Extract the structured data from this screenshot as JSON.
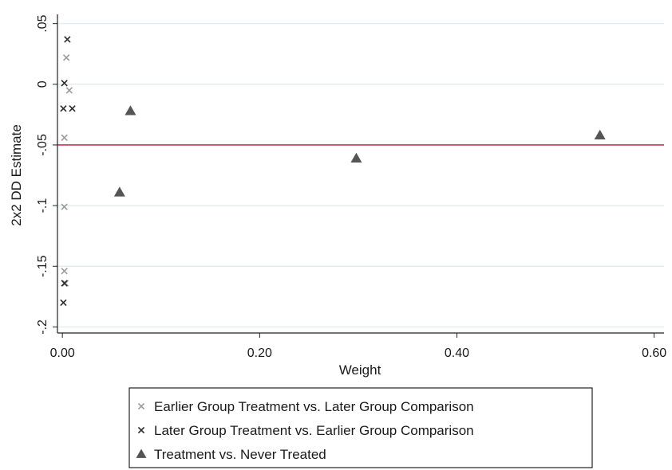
{
  "chart_data": {
    "type": "scatter",
    "xlabel": "Weight",
    "ylabel": "2x2 DD Estimate",
    "xlim": [
      -0.005,
      0.61
    ],
    "ylim": [
      -0.205,
      0.057
    ],
    "x_ticks": [
      0.0,
      0.2,
      0.4,
      0.6
    ],
    "x_tick_labels": [
      "0.00",
      "0.20",
      "0.40",
      "0.60"
    ],
    "y_ticks": [
      0.05,
      0.0,
      -0.05,
      -0.1,
      -0.15,
      -0.2
    ],
    "y_tick_labels": [
      ".05",
      "0",
      "-.05",
      "-.1",
      "-.15",
      "-.2"
    ],
    "grid": true,
    "legend_position": "bottom",
    "reference_line": {
      "y": -0.05,
      "color": "#c0143c"
    },
    "series": [
      {
        "name": "Earlier Group Treatment vs. Later Group Comparison",
        "marker": "x",
        "color": "#9a9a9a",
        "points": [
          {
            "x": 0.004,
            "y": 0.022
          },
          {
            "x": 0.007,
            "y": -0.005
          },
          {
            "x": 0.002,
            "y": -0.044
          },
          {
            "x": 0.002,
            "y": -0.101
          },
          {
            "x": 0.002,
            "y": -0.154
          },
          {
            "x": 0.003,
            "y": -0.164
          }
        ]
      },
      {
        "name": "Later Group Treatment vs. Earlier Group Comparison",
        "marker": "x",
        "color": "#2b2b2b",
        "points": [
          {
            "x": 0.005,
            "y": 0.037
          },
          {
            "x": 0.002,
            "y": 0.001
          },
          {
            "x": 0.001,
            "y": -0.02
          },
          {
            "x": 0.01,
            "y": -0.02
          },
          {
            "x": 0.002,
            "y": -0.164
          },
          {
            "x": 0.001,
            "y": -0.18
          }
        ]
      },
      {
        "name": "Treatment vs. Never Treated",
        "marker": "triangle",
        "color": "#555555",
        "points": [
          {
            "x": 0.069,
            "y": -0.022
          },
          {
            "x": 0.058,
            "y": -0.089
          },
          {
            "x": 0.298,
            "y": -0.061
          },
          {
            "x": 0.545,
            "y": -0.042
          }
        ]
      }
    ]
  }
}
